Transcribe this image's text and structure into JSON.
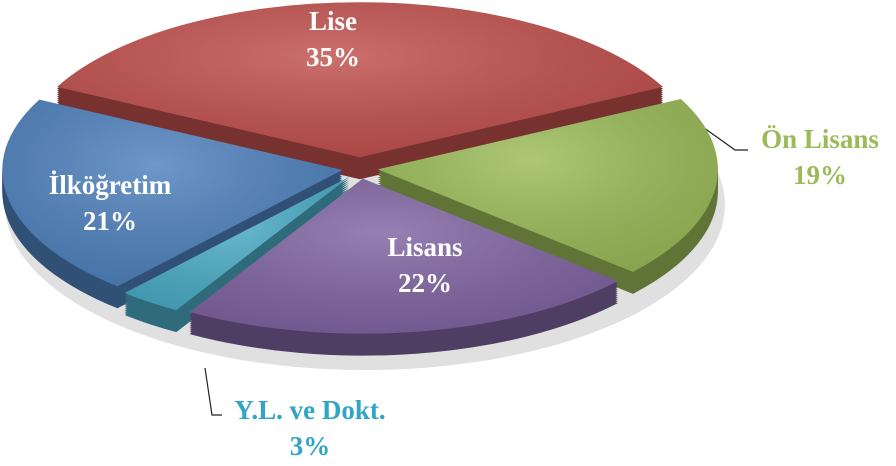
{
  "chart_data": {
    "type": "pie",
    "categories": [
      "Lise",
      "Ön Lisans",
      "Lisans",
      "Y.L. ve Dokt.",
      "İlköğretim"
    ],
    "values": [
      35,
      19,
      22,
      3,
      21
    ],
    "value_labels": [
      "35%",
      "19%",
      "22%",
      "3%",
      "21%"
    ],
    "colors": [
      "#c0504d",
      "#9bbb59",
      "#8064a2",
      "#4bacc6",
      "#4f81bd"
    ]
  }
}
